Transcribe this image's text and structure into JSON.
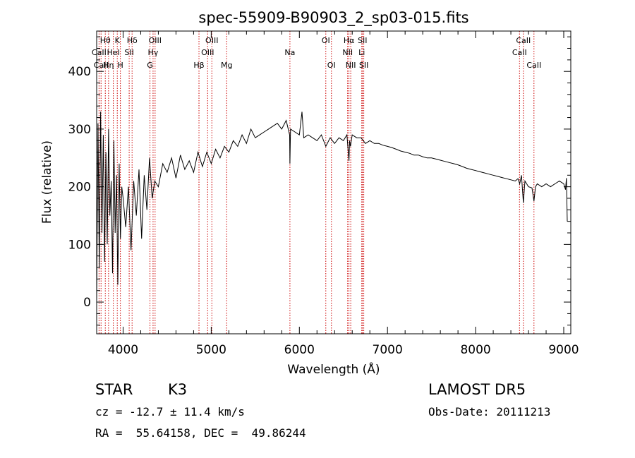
{
  "chart_data": {
    "type": "line",
    "title": "spec-55909-B90903_2_sp03-015.fits",
    "xlabel": "Wavelength (Å)",
    "ylabel": "Flux (relative)",
    "xlim": [
      3700,
      9080
    ],
    "ylim": [
      -55,
      470
    ],
    "xticks": [
      4000,
      5000,
      6000,
      7000,
      8000,
      9000
    ],
    "yticks": [
      0,
      100,
      200,
      300,
      400
    ],
    "grid": false,
    "line_color": "#000000",
    "marker_color": "#cc0000",
    "series": [
      {
        "x": [
          3700,
          3715,
          3730,
          3745,
          3760,
          3775,
          3790,
          3805,
          3820,
          3835,
          3850,
          3865,
          3880,
          3895,
          3910,
          3925,
          3940,
          3955,
          3970,
          3985,
          4000,
          4030,
          4060,
          4090,
          4120,
          4150,
          4180,
          4210,
          4240,
          4270,
          4300,
          4330,
          4360,
          4400,
          4450,
          4500,
          4550,
          4600,
          4650,
          4700,
          4750,
          4800,
          4850,
          4900,
          4950,
          5000,
          5050,
          5100,
          5150,
          5200,
          5250,
          5300,
          5350,
          5400,
          5450,
          5500,
          5550,
          5600,
          5650,
          5700,
          5750,
          5800,
          5850,
          5890,
          5893,
          5900,
          5950,
          6000,
          6030,
          6050,
          6100,
          6150,
          6200,
          6250,
          6300,
          6350,
          6400,
          6450,
          6500,
          6540,
          6563,
          6570,
          6580,
          6600,
          6650,
          6700,
          6750,
          6800,
          6850,
          6900,
          6950,
          7000,
          7050,
          7100,
          7150,
          7200,
          7250,
          7300,
          7350,
          7400,
          7450,
          7500,
          7550,
          7600,
          7650,
          7700,
          7750,
          7800,
          7850,
          7900,
          7950,
          8000,
          8050,
          8100,
          8150,
          8200,
          8250,
          8300,
          8350,
          8400,
          8450,
          8480,
          8500,
          8520,
          8542,
          8560,
          8580,
          8600,
          8640,
          8662,
          8680,
          8700,
          8750,
          8800,
          8850,
          8900,
          8950,
          9000,
          9020,
          9030,
          9040
        ],
        "y": [
          0,
          310,
          60,
          330,
          120,
          290,
          70,
          260,
          100,
          300,
          150,
          210,
          50,
          280,
          120,
          220,
          30,
          240,
          110,
          200,
          180,
          130,
          200,
          90,
          210,
          150,
          230,
          110,
          220,
          160,
          250,
          180,
          210,
          200,
          240,
          225,
          250,
          215,
          255,
          230,
          245,
          225,
          260,
          235,
          260,
          240,
          265,
          250,
          270,
          260,
          280,
          270,
          290,
          275,
          300,
          285,
          290,
          295,
          300,
          305,
          310,
          300,
          315,
          290,
          240,
          300,
          295,
          290,
          330,
          285,
          290,
          285,
          280,
          290,
          270,
          285,
          275,
          285,
          280,
          290,
          245,
          280,
          270,
          290,
          285,
          285,
          275,
          280,
          275,
          275,
          272,
          270,
          268,
          265,
          262,
          260,
          258,
          255,
          255,
          252,
          250,
          250,
          248,
          246,
          244,
          242,
          240,
          238,
          235,
          232,
          230,
          228,
          226,
          224,
          222,
          220,
          218,
          216,
          214,
          212,
          210,
          214,
          205,
          220,
          172,
          210,
          205,
          200,
          198,
          175,
          200,
          205,
          200,
          205,
          200,
          205,
          210,
          205,
          195,
          215,
          140
        ]
      }
    ],
    "lines": [
      "Hδ",
      "Hγ",
      "Hβ",
      "Hα",
      "K",
      "H",
      "G",
      "Mg",
      "Na",
      "Li",
      "CaII",
      "OI",
      "OIII",
      "NII",
      "SII",
      "HeI",
      "CaII",
      "Hη"
    ],
    "line_marks": [
      {
        "label": "Hθ",
        "x": 3798,
        "row": 0
      },
      {
        "label": "Hη",
        "x": 3835,
        "row": 2
      },
      {
        "label": "CaII",
        "x": 3727,
        "row": 1
      },
      {
        "label": "CaII",
        "x": 3750,
        "row": 2
      },
      {
        "label": "HeI",
        "x": 3889,
        "row": 1
      },
      {
        "label": "K",
        "x": 3934,
        "row": 0
      },
      {
        "label": "H",
        "x": 3969,
        "row": 2
      },
      {
        "label": "Hδ",
        "x": 4102,
        "row": 0
      },
      {
        "label": "SII",
        "x": 4069,
        "row": 1
      },
      {
        "label": "OIII",
        "x": 4363,
        "row": 0
      },
      {
        "label": "Hγ",
        "x": 4340,
        "row": 1
      },
      {
        "label": "G",
        "x": 4305,
        "row": 2
      },
      {
        "label": "Hβ",
        "x": 4861,
        "row": 2
      },
      {
        "label": "OIII",
        "x": 5007,
        "row": 0
      },
      {
        "label": "OIII",
        "x": 4959,
        "row": 1
      },
      {
        "label": "Mg",
        "x": 5175,
        "row": 2
      },
      {
        "label": "Na",
        "x": 5893,
        "row": 1
      },
      {
        "label": "OI",
        "x": 6300,
        "row": 0
      },
      {
        "label": "OI",
        "x": 6364,
        "row": 2
      },
      {
        "label": "Hα",
        "x": 6563,
        "row": 0
      },
      {
        "label": "NII",
        "x": 6548,
        "row": 1
      },
      {
        "label": "NII",
        "x": 6583,
        "row": 2
      },
      {
        "label": "SII",
        "x": 6716,
        "row": 0
      },
      {
        "label": "Li",
        "x": 6708,
        "row": 1
      },
      {
        "label": "SII",
        "x": 6731,
        "row": 2
      },
      {
        "label": "CaII",
        "x": 8542,
        "row": 0
      },
      {
        "label": "CaII",
        "x": 8498,
        "row": 1
      },
      {
        "label": "CaII",
        "x": 8662,
        "row": 2
      }
    ]
  },
  "info": {
    "object_class": "STAR",
    "subclass": "K3",
    "survey": "LAMOST DR5",
    "redshift": "cz = -12.7 ± 11.4 km/s",
    "obs_date": "Obs-Date: 20111213",
    "coords": "RA =  55.64158, DEC =  49.86244"
  }
}
